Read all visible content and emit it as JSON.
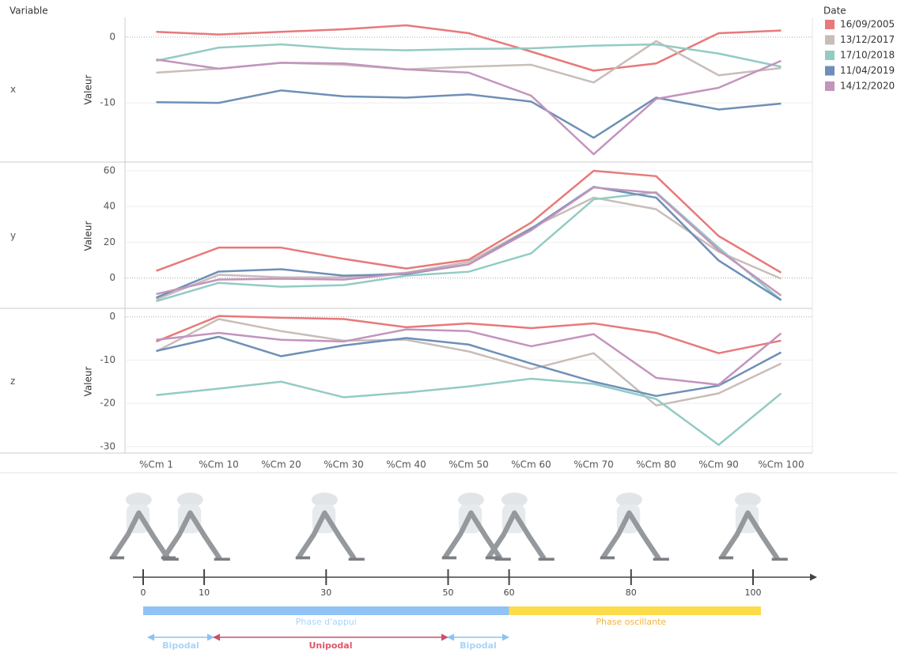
{
  "header": {
    "variable_label": "Variable",
    "legend_title": "Date"
  },
  "chart_data": [
    {
      "type": "line",
      "facet": "x",
      "ylabel": "Valeur",
      "ylim": [
        -19,
        3
      ],
      "yticks": [
        -10,
        0
      ],
      "grid": true,
      "series": [
        {
          "name": "16/09/2005",
          "color": "#e8797a",
          "values": [
            0.8,
            0.4,
            0.8,
            1.2,
            1.8,
            0.6,
            -2.2,
            -5.1,
            -4.0,
            0.6,
            1.0
          ]
        },
        {
          "name": "13/12/2017",
          "color": "#c9bdb8",
          "values": [
            -5.4,
            -4.8,
            -3.9,
            -4.2,
            -4.9,
            -4.5,
            -4.2,
            -6.9,
            -0.6,
            -5.8,
            -4.7
          ]
        },
        {
          "name": "17/10/2018",
          "color": "#93cbc4",
          "values": [
            -3.6,
            -1.6,
            -1.1,
            -1.8,
            -2.0,
            -1.8,
            -1.7,
            -1.3,
            -1.1,
            -2.5,
            -4.5
          ]
        },
        {
          "name": "11/04/2019",
          "color": "#6e8fb8",
          "values": [
            -9.9,
            -10.0,
            -8.1,
            -9.0,
            -9.2,
            -8.7,
            -9.8,
            -15.3,
            -9.2,
            -11.0,
            -10.1
          ]
        },
        {
          "name": "14/12/2020",
          "color": "#c394bd",
          "values": [
            -3.4,
            -4.8,
            -3.9,
            -4.0,
            -4.9,
            -5.4,
            -8.9,
            -17.8,
            -9.4,
            -7.7,
            -3.6
          ]
        }
      ]
    },
    {
      "type": "line",
      "facet": "y",
      "ylabel": "Valeur",
      "ylim": [
        -17,
        64
      ],
      "yticks": [
        0,
        20,
        40,
        60
      ],
      "grid": true,
      "series": [
        {
          "color": "#e8797a",
          "values": [
            4,
            17,
            17,
            10.7,
            5.3,
            10.2,
            31,
            60,
            57,
            23.5,
            3
          ]
        },
        {
          "color": "#c9bdb8",
          "values": [
            -12,
            1.8,
            0.4,
            0.4,
            3,
            9,
            28,
            45,
            38.5,
            14.7,
            -0.4
          ]
        },
        {
          "color": "#93cbc4",
          "values": [
            -13,
            -2.7,
            -4.9,
            -4,
            1.3,
            3.5,
            13.8,
            44,
            48,
            17,
            -12.4
          ]
        },
        {
          "color": "#6e8fb8",
          "values": [
            -11,
            3.6,
            4.9,
            1.3,
            2.2,
            7.6,
            27.5,
            51,
            45,
            9.8,
            -12.4
          ]
        },
        {
          "color": "#c394bd",
          "values": [
            -9,
            -0.9,
            -0.4,
            -0.9,
            2.7,
            7.6,
            26.7,
            50.7,
            47.6,
            15.6,
            -9.8
          ]
        }
      ]
    },
    {
      "type": "line",
      "facet": "z",
      "ylabel": "Valeur",
      "ylim": [
        -31.5,
        1.6
      ],
      "yticks": [
        -30,
        -20,
        -10,
        0
      ],
      "grid": true,
      "categories": [
        "%Cm 1",
        "%Cm 10",
        "%Cm 20",
        "%Cm 30",
        "%Cm 40",
        "%Cm 50",
        "%Cm 60",
        "%Cm 70",
        "%Cm 80",
        "%Cm 90",
        "%Cm 100"
      ],
      "series": [
        {
          "color": "#e8797a",
          "values": [
            -5.7,
            0.2,
            -0.2,
            -0.5,
            -2.4,
            -1.5,
            -2.6,
            -1.5,
            -3.7,
            -8.4,
            -5.5
          ]
        },
        {
          "color": "#c9bdb8",
          "values": [
            -8,
            -0.5,
            -3.3,
            -5.5,
            -5.3,
            -8,
            -12.1,
            -8.4,
            -20.5,
            -17.7,
            -10.8
          ]
        },
        {
          "color": "#93cbc4",
          "values": [
            -18.1,
            -16.6,
            -15,
            -18.6,
            -17.5,
            -16.1,
            -14.3,
            -15.5,
            -19,
            -29.6,
            -17.7
          ]
        },
        {
          "color": "#6e8fb8",
          "values": [
            -7.9,
            -4.6,
            -9.1,
            -6.6,
            -4.9,
            -6.4,
            -10.8,
            -15,
            -18.3,
            -15.9,
            -8.2
          ]
        },
        {
          "color": "#c394bd",
          "values": [
            -5.3,
            -3.7,
            -5.3,
            -5.7,
            -2.9,
            -3.3,
            -6.8,
            -4,
            -14.1,
            -15.7,
            -3.8
          ]
        }
      ]
    }
  ],
  "gait": {
    "ticks": [
      0,
      10,
      30,
      50,
      60,
      80,
      100
    ],
    "phases": [
      "Phase d'appui",
      "Phase oscillante"
    ],
    "supports": [
      "Bipodal",
      "Unipodal",
      "Bipodal"
    ]
  }
}
